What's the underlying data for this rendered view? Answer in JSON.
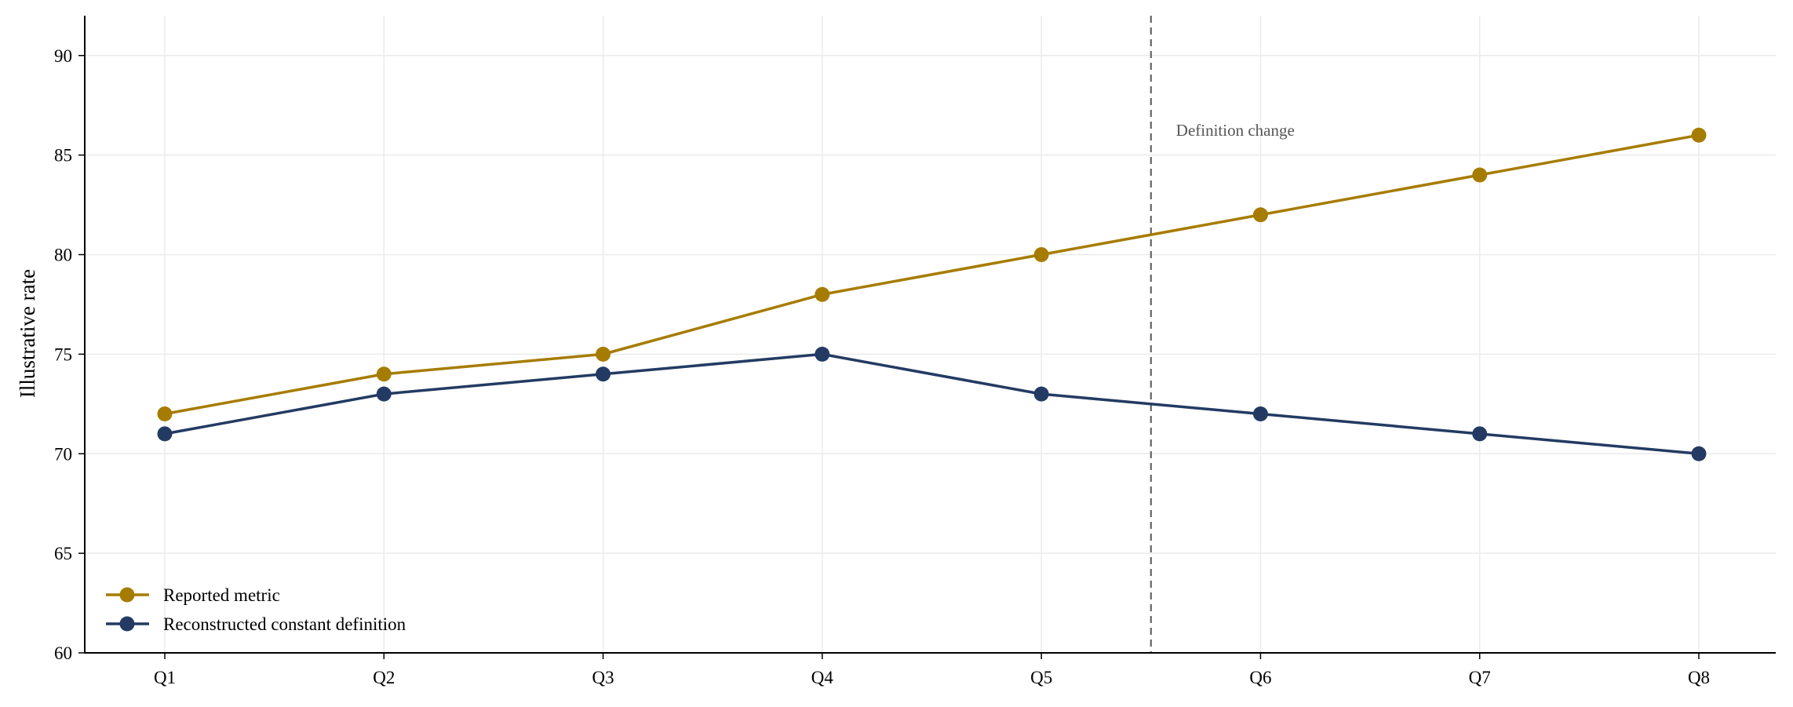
{
  "colors": {
    "reported": "#A67C00",
    "reconstructed": "#233B63",
    "grid": "#EBEBEB",
    "axis": "#000000",
    "annotation": "#666666"
  },
  "chart_data": {
    "type": "line",
    "categories": [
      "Q1",
      "Q2",
      "Q3",
      "Q4",
      "Q5",
      "Q6",
      "Q7",
      "Q8"
    ],
    "series": [
      {
        "name": "Reported metric",
        "color": "#A67C00",
        "values": [
          72,
          74,
          75,
          78,
          80,
          82,
          84,
          86
        ]
      },
      {
        "name": "Reconstructed constant definition",
        "color": "#233B63",
        "values": [
          71,
          73,
          74,
          75,
          73,
          72,
          71,
          70
        ]
      }
    ],
    "title": "",
    "xlabel": "",
    "ylabel": "Illustrative rate",
    "ylim": [
      60,
      92
    ],
    "yticks": [
      60,
      65,
      70,
      75,
      80,
      85,
      90
    ],
    "grid": true,
    "legend_position": "bottom-left",
    "annotations": [
      {
        "text": "Definition change",
        "x": 4.5,
        "style": "dashed vertical line"
      }
    ]
  }
}
